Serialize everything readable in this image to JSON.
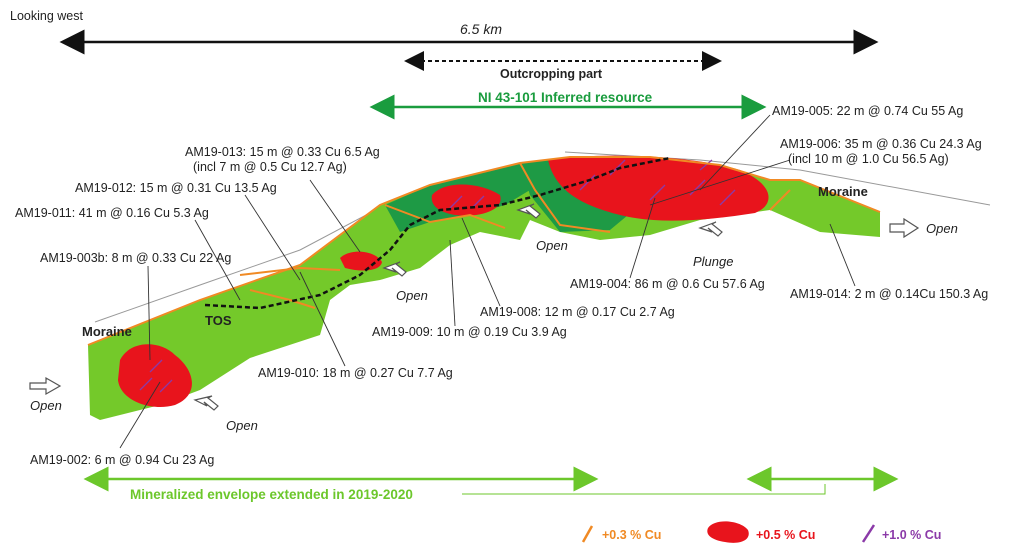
{
  "header": {
    "view": "Looking west"
  },
  "scale": {
    "length": "6.5 km",
    "outcrop": "Outcropping part",
    "resource": "NI 43-101 Inferred resource"
  },
  "drill_holes": [
    {
      "label": "AM19-005: 22 m @ 0.74 Cu 55 Ag"
    },
    {
      "label": "AM19-006: 35 m @ 0.36 Cu 24.3 Ag",
      "note": "(incl 10 m @ 1.0 Cu 56.5 Ag)"
    },
    {
      "label": "AM19-013: 15 m @ 0.33 Cu 6.5 Ag",
      "note": "(incl 7 m @ 0.5 Cu 12.7 Ag)"
    },
    {
      "label": "AM19-012: 15 m @ 0.31 Cu 13.5 Ag"
    },
    {
      "label": "AM19-011: 41 m @ 0.16 Cu 5.3 Ag"
    },
    {
      "label": "AM19-003b: 8 m @ 0.33 Cu 22 Ag"
    },
    {
      "label": "AM19-004: 86 m @ 0.6 Cu 57.6 Ag"
    },
    {
      "label": "AM19-014: 2 m @ 0.14Cu 150.3 Ag"
    },
    {
      "label": "AM19-008: 12 m @ 0.17 Cu 2.7 Ag"
    },
    {
      "label": "AM19-009: 10 m @ 0.19 Cu 3.9 Ag"
    },
    {
      "label": "AM19-010: 18 m @ 0.27 Cu 7.7 Ag"
    },
    {
      "label": "AM19-002: 6 m @ 0.94 Cu 23 Ag"
    }
  ],
  "map_labels": {
    "moraine": [
      "Moraine",
      "Moraine"
    ],
    "tos": "TOS",
    "open": [
      "Open",
      "Open",
      "Open",
      "Open",
      "Open"
    ],
    "plunge": "Plunge"
  },
  "envelope": "Mineralized envelope extended in 2019-2020",
  "legend": [
    "+0.3 % Cu",
    "+0.5 % Cu",
    "+1.0 % Cu"
  ]
}
